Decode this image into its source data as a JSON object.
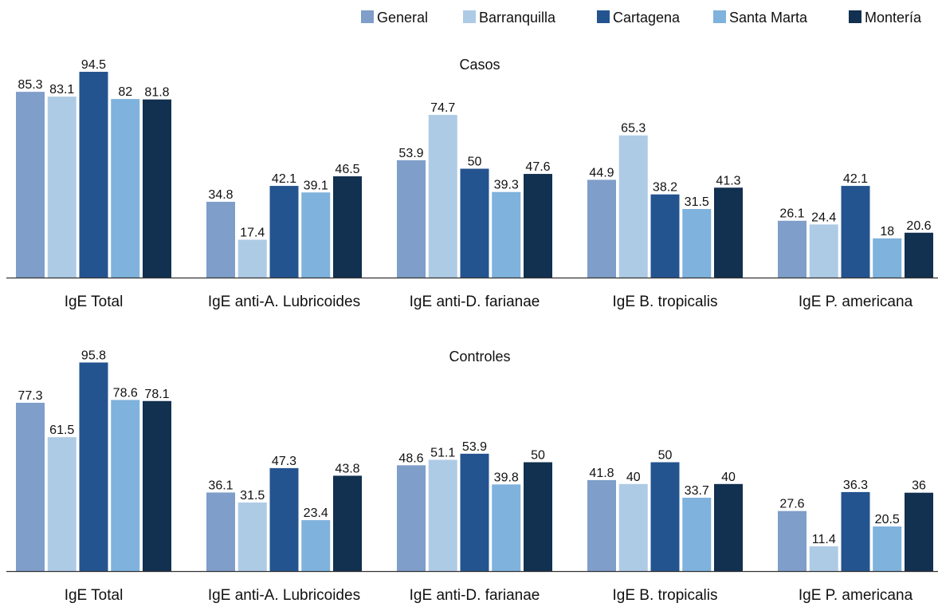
{
  "chart_data": {
    "type": "bar",
    "legend_position": "top-right",
    "grid": false,
    "series": [
      {
        "name": "General",
        "color": "#7f9ec9"
      },
      {
        "name": "Barranquilla",
        "color": "#aecbe5"
      },
      {
        "name": "Cartagena",
        "color": "#24548f"
      },
      {
        "name": "Santa Marta",
        "color": "#7fb2dc"
      },
      {
        "name": "Montería",
        "color": "#12304f"
      }
    ],
    "categories": [
      "IgE Total",
      "IgE anti-A. Lubricoides",
      "IgE anti-D. farianae",
      "IgE B. tropicalis",
      "IgE P. americana"
    ],
    "panels": [
      {
        "title": "Casos",
        "ylim": [
          0,
          100
        ],
        "values": [
          [
            85.3,
            34.8,
            53.9,
            44.9,
            26.1
          ],
          [
            83.1,
            17.4,
            74.7,
            65.3,
            24.4
          ],
          [
            94.5,
            42.1,
            50,
            38.2,
            42.1
          ],
          [
            82,
            39.1,
            39.3,
            31.5,
            18
          ],
          [
            81.8,
            46.5,
            47.6,
            41.3,
            20.6
          ]
        ],
        "labels": [
          [
            "85.3",
            "34.8",
            "53.9",
            "44.9",
            "26.1"
          ],
          [
            "83.1",
            "17.4",
            "74.7",
            "65.3",
            "24.4"
          ],
          [
            "94.5",
            "42.1",
            "50",
            "38.2",
            "42.1"
          ],
          [
            "82",
            "39.1",
            "39.3",
            "31.5",
            "18"
          ],
          [
            "81.8",
            "46.5",
            "47.6",
            "41.3",
            "20.6"
          ]
        ]
      },
      {
        "title": "Controles",
        "ylim": [
          0,
          100
        ],
        "values": [
          [
            77.3,
            36.1,
            48.6,
            41.8,
            27.6
          ],
          [
            61.5,
            31.5,
            51.1,
            40,
            11.4
          ],
          [
            95.8,
            47.3,
            53.9,
            50,
            36.3
          ],
          [
            78.6,
            23.4,
            39.8,
            33.7,
            20.5
          ],
          [
            78.1,
            43.8,
            50,
            40,
            36
          ]
        ],
        "labels": [
          [
            "77.3",
            "36.1",
            "48.6",
            "41.8",
            "27.6"
          ],
          [
            "61.5",
            "31.5",
            "51.1",
            "40",
            "11.4"
          ],
          [
            "95.8",
            "47.3",
            "53.9",
            "50",
            "36.3"
          ],
          [
            "78.6",
            "23.4",
            "39.8",
            "33.7",
            "20.5"
          ],
          [
            "78.1",
            "43.8",
            "50",
            "40",
            "36"
          ]
        ]
      }
    ]
  }
}
